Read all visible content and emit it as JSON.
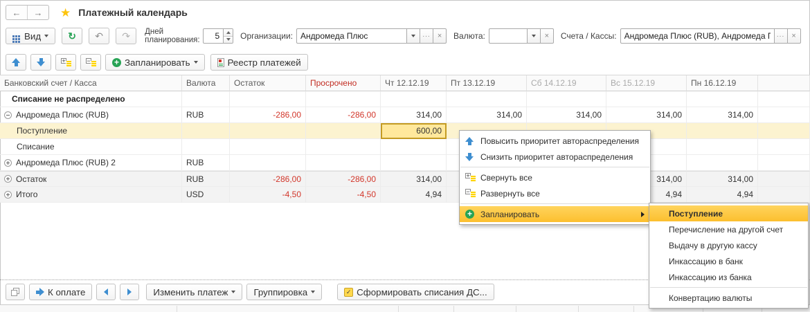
{
  "window": {
    "title": "Платежный календарь"
  },
  "toolbar": {
    "view": {
      "label": "Вид"
    },
    "days": {
      "label": "Дней планирования:",
      "value": "5"
    },
    "org": {
      "label": "Организации:",
      "value": "Андромеда Плюс"
    },
    "currency": {
      "label": "Валюта:",
      "value": ""
    },
    "accounts": {
      "label": "Счета / Кассы:",
      "value": "Андромеда Плюс (RUB), Андромеда Плюс"
    },
    "schedule": {
      "label": "Запланировать"
    },
    "register": {
      "label": "Реестр платежей"
    }
  },
  "table": {
    "columns": [
      {
        "label": "Банковский счет / Касса"
      },
      {
        "label": "Валюта"
      },
      {
        "label": "Остаток"
      },
      {
        "label": "Просрочено",
        "overdue": true
      },
      {
        "label": "Чт 12.12.19"
      },
      {
        "label": "Пт 13.12.19"
      },
      {
        "label": "Сб 14.12.19",
        "muted": true
      },
      {
        "label": "Вс 15.12.19",
        "muted": true
      },
      {
        "label": "Пн 16.12.19"
      },
      {
        "label": ""
      }
    ],
    "rows": [
      {
        "name": "unallocated",
        "label": "Списание не распределено",
        "bold": true,
        "lvl1": true,
        "cells": [
          "",
          "",
          "",
          "",
          "",
          "",
          "",
          "",
          ""
        ]
      },
      {
        "name": "account-rub",
        "label": "Андромеда Плюс (RUB)",
        "expander": "minus",
        "cells": [
          "RUB",
          "-286,00",
          "-286,00",
          "314,00",
          "314,00",
          "314,00",
          "314,00",
          "314,00",
          ""
        ]
      },
      {
        "name": "receipt-row",
        "label": "Поступление",
        "indent": true,
        "selected_row": true,
        "cells": [
          "",
          "",
          "",
          "600,00",
          "",
          "",
          "",
          "",
          ""
        ],
        "selected_cell_index": 3
      },
      {
        "name": "writeoff-row",
        "label": "Списание",
        "indent": true,
        "cells": [
          "",
          "",
          "",
          "",
          "",
          "",
          "",
          "",
          ""
        ]
      },
      {
        "name": "account-rub-2",
        "label": "Андромеда Плюс (RUB) 2",
        "expander": "plus",
        "cells": [
          "RUB",
          "",
          "",
          "",
          "",
          "",
          "",
          "",
          ""
        ]
      },
      {
        "name": "balance-total",
        "label": "Остаток",
        "expander": "plus",
        "gray": true,
        "first_total": true,
        "cells": [
          "RUB",
          "-286,00",
          "-286,00",
          "314,00",
          "314,00",
          "314,00",
          "314,00",
          "314,00",
          ""
        ]
      },
      {
        "name": "grand-total",
        "label": "Итого",
        "expander": "plus",
        "gray": true,
        "cells": [
          "USD",
          "-4,50",
          "-4,50",
          "4,94",
          "4,94",
          "4,94",
          "4,94",
          "4,94",
          ""
        ]
      }
    ]
  },
  "context_menu": {
    "items": [
      {
        "name": "priority-up",
        "icon": "priority-up-icon",
        "label": "Повысить приоритет автораспределения"
      },
      {
        "name": "priority-down",
        "icon": "priority-down-icon",
        "label": "Снизить приоритет автораспределения"
      },
      {
        "separator": true
      },
      {
        "name": "collapse-all",
        "icon": "collapse-all-icon",
        "label": "Свернуть все"
      },
      {
        "name": "expand-all",
        "icon": "expand-all-icon",
        "label": "Развернуть все"
      },
      {
        "separator": true
      },
      {
        "name": "schedule",
        "icon": "add-icon",
        "label": "Запланировать",
        "highlighted": true,
        "has_submenu": true
      }
    ]
  },
  "submenu": {
    "items": [
      {
        "name": "receipt",
        "label": "Поступление",
        "highlighted": true,
        "bold": true
      },
      {
        "name": "transfer-account",
        "label": "Перечисление на другой счет"
      },
      {
        "name": "cash-issue",
        "label": "Выдачу в другую кассу"
      },
      {
        "name": "collection-to-bank",
        "label": "Инкассацию в банк"
      },
      {
        "name": "collection-from-bank",
        "label": "Инкассацию из банка"
      },
      {
        "separator": true
      },
      {
        "name": "currency-conversion",
        "label": "Конвертацию валюты"
      }
    ]
  },
  "bottom_toolbar": {
    "pay": {
      "label": "К оплате"
    },
    "edit": {
      "label": "Изменить платеж"
    },
    "group": {
      "label": "Группировка"
    },
    "generate": {
      "label": "Сформировать списания ДС..."
    }
  },
  "colors": {
    "menu_highlight": "#fcbf2e",
    "row_selection": "#fcf3d0",
    "selected_cell": "#ffe89c",
    "negative_red": "#d2362a",
    "action_blue": "#3e8ed0",
    "action_green": "#27a355",
    "star_yellow": "#fdc40d"
  }
}
